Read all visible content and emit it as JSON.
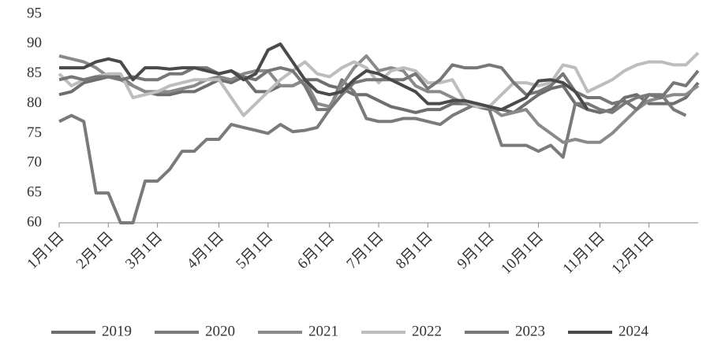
{
  "chart_data": {
    "type": "line",
    "categories": [
      "1月1日",
      null,
      null,
      null,
      "2月1日",
      null,
      null,
      null,
      "3月1日",
      null,
      null,
      null,
      null,
      "4月1日",
      null,
      null,
      null,
      "5月1日",
      null,
      null,
      null,
      null,
      "6月1日",
      null,
      null,
      null,
      "7月1日",
      null,
      null,
      null,
      "8月1日",
      null,
      null,
      null,
      null,
      "9月1日",
      null,
      null,
      null,
      "10月1日",
      null,
      null,
      null,
      null,
      "11月1日",
      null,
      null,
      null,
      "12月1日",
      null,
      null,
      null,
      null
    ],
    "series": [
      {
        "name": "2019",
        "color": "#6e6e6e",
        "values": [
          81.5,
          82,
          83.5,
          84,
          84.5,
          84.5,
          83,
          82,
          81.5,
          81.5,
          82,
          82,
          83,
          84,
          83.5,
          84.5,
          82,
          82,
          83,
          83,
          84,
          84,
          83,
          82.5,
          81.5,
          81.5,
          80.5,
          79.5,
          79,
          78.5,
          79,
          79,
          80,
          80,
          79.5,
          79,
          79,
          78.5,
          80,
          81.5,
          82.5,
          83,
          80,
          79,
          78.5,
          79,
          81,
          81.5,
          80,
          80,
          80,
          81,
          83.5
        ]
      },
      {
        "name": "2020",
        "color": "#7a7a7a",
        "values": [
          77,
          78,
          77,
          65,
          65,
          60,
          60,
          67,
          67,
          69,
          72,
          72,
          74,
          74,
          76.5,
          76,
          75.5,
          75,
          76.5,
          75.3,
          75.5,
          76,
          79,
          84,
          82,
          77.5,
          77,
          77,
          77.5,
          77.5,
          77,
          76.5,
          78,
          79,
          80,
          79,
          73,
          73,
          73,
          72,
          73,
          71,
          80,
          80,
          79,
          78.5,
          80,
          81,
          81.5,
          81.5,
          79,
          78,
          null
        ]
      },
      {
        "name": "2021",
        "color": "#8a8a8a",
        "values": [
          88,
          87.5,
          87,
          86,
          84.5,
          84,
          83,
          82,
          82,
          82,
          82.5,
          83,
          84,
          84.5,
          84,
          85,
          85.5,
          85.5,
          83,
          83,
          84,
          80,
          79.5,
          83,
          86,
          88,
          85.5,
          86,
          85.5,
          83,
          82,
          82,
          81,
          80,
          80,
          79.5,
          78,
          78.5,
          79,
          76.5,
          75,
          73.5,
          74,
          73.5,
          73.5,
          75,
          77,
          79,
          80.5,
          81,
          81.5,
          81.5,
          83
        ]
      },
      {
        "name": "2022",
        "color": "#bdbdbd",
        "values": [
          85,
          83,
          84,
          84.5,
          85,
          85,
          81,
          81.5,
          82,
          83,
          83.5,
          84,
          84,
          84,
          81,
          78,
          80,
          82,
          84,
          85.5,
          87,
          85,
          84.5,
          86,
          87,
          86,
          83.5,
          85.5,
          86,
          85.5,
          83.5,
          83.5,
          84,
          80.5,
          79.5,
          79.5,
          81.5,
          83.5,
          83.5,
          83,
          83.5,
          86.5,
          86,
          82,
          83,
          84,
          85.5,
          86.5,
          87,
          87,
          86.5,
          86.5,
          88.5
        ]
      },
      {
        "name": "2023",
        "color": "#777777",
        "values": [
          84,
          84.5,
          84,
          84.5,
          84.5,
          84,
          84.5,
          84,
          84,
          85,
          85,
          86,
          86,
          85,
          85.5,
          84.5,
          84,
          85.5,
          86,
          85.5,
          83,
          79,
          79,
          81.5,
          83.5,
          84,
          84,
          84,
          84,
          85,
          82.5,
          84,
          86.5,
          86,
          86,
          86.5,
          86,
          83.5,
          81.5,
          82,
          83,
          85,
          82,
          81,
          81,
          80,
          80.5,
          79,
          81.5,
          81,
          83.5,
          83,
          85.5
        ]
      },
      {
        "name": "2024",
        "color": "#4a4a4a",
        "values": [
          86,
          86,
          86,
          87,
          87.5,
          87,
          84,
          86,
          86,
          85.8,
          86,
          86,
          85.5,
          85,
          85.5,
          84,
          85,
          89,
          90,
          87,
          84,
          82,
          81.5,
          82,
          84,
          85.5,
          85,
          84,
          83,
          82,
          80,
          80,
          80.5,
          80.5,
          80,
          79.5,
          79,
          80,
          81,
          83.8,
          84,
          83.5,
          82,
          79,
          null,
          null,
          null,
          null,
          null,
          null,
          null,
          null,
          null
        ]
      }
    ],
    "ylim": [
      60,
      95
    ],
    "yticks": [
      60,
      65,
      70,
      75,
      80,
      85,
      90,
      95
    ],
    "grid": false
  }
}
